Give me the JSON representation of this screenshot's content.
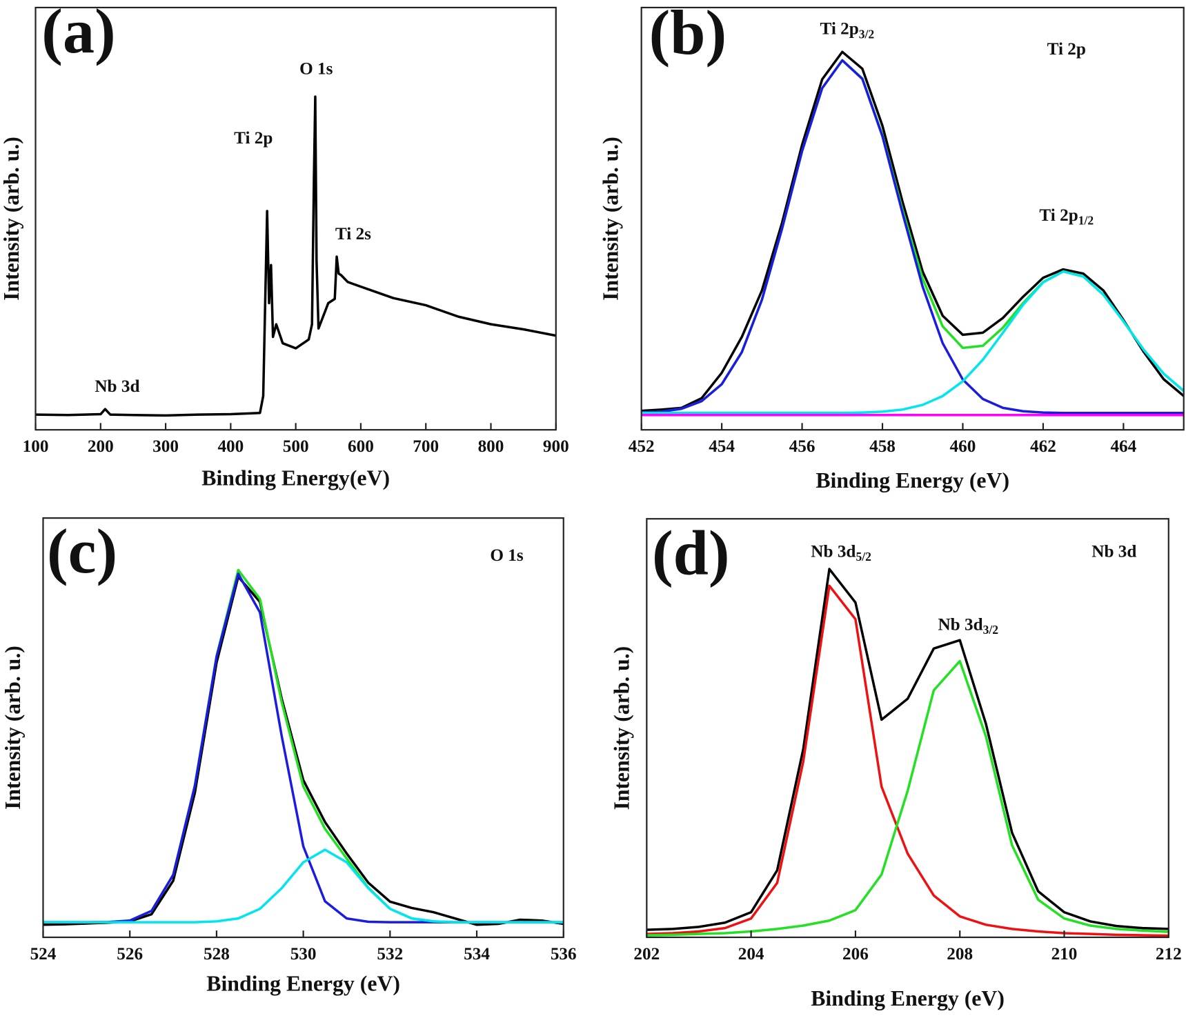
{
  "chart_data": [
    {
      "type": "line",
      "panel_label": "(a)",
      "xlabel": "Binding Energy(eV)",
      "ylabel": "Intensity (arb. u.)",
      "xlim": [
        100,
        900
      ],
      "xticks": [
        100,
        200,
        300,
        400,
        500,
        600,
        700,
        800,
        900
      ],
      "ylim": [
        0,
        100
      ],
      "x": [
        100,
        150,
        200,
        207,
        215,
        250,
        300,
        350,
        400,
        445,
        450,
        453,
        456,
        459,
        462,
        465,
        470,
        480,
        500,
        520,
        525,
        528,
        530,
        532,
        535,
        540,
        550,
        560,
        563,
        566,
        570,
        580,
        600,
        650,
        700,
        750,
        800,
        850,
        900
      ],
      "series": [
        {
          "color": "#000000",
          "values": [
            3.6,
            3.5,
            3.7,
            4.9,
            3.6,
            3.5,
            3.4,
            3.6,
            3.7,
            4.0,
            8,
            30,
            51.8,
            30,
            39,
            22,
            25,
            20.5,
            19.3,
            21.4,
            25,
            60,
            78.9,
            40,
            24,
            26,
            30,
            31,
            41,
            37,
            36.6,
            35,
            33.9,
            31.2,
            29.5,
            26.8,
            25,
            23.8,
            22.3
          ]
        }
      ],
      "annotations": [
        {
          "text": "Ti 2p"
        },
        {
          "text": "O 1s"
        },
        {
          "text": "Ti 2s"
        },
        {
          "text": "Nb 3d"
        }
      ]
    },
    {
      "type": "line",
      "panel_label": "(b)",
      "xlabel": "Binding Energy (eV)",
      "ylabel": "Intensity (arb. u.)",
      "xlim": [
        452,
        465.5
      ],
      "xticks": [
        452,
        454,
        456,
        458,
        460,
        462,
        464
      ],
      "ylim": [
        0,
        100
      ],
      "x": [
        452,
        452.5,
        453,
        453.5,
        454,
        454.5,
        455,
        455.5,
        456,
        456.5,
        457,
        457.5,
        458,
        458.5,
        459,
        459.5,
        460,
        460.5,
        461,
        461.5,
        462,
        462.5,
        463,
        463.5,
        464,
        464.5,
        465,
        465.5
      ],
      "series": [
        {
          "color": "#000000",
          "values": [
            4.5,
            4.8,
            5.2,
            7.5,
            13.5,
            22.0,
            33.0,
            49.0,
            67.5,
            83.0,
            89.5,
            85.5,
            72.0,
            54.0,
            37.5,
            27.0,
            22.5,
            23.0,
            26.5,
            31.5,
            36.0,
            38.0,
            37.0,
            33.0,
            26.0,
            18.5,
            12.0,
            8.0
          ]
        },
        {
          "color": "#22e022",
          "values": [
            4.1,
            4.3,
            5.0,
            6.8,
            10.8,
            18.4,
            30.8,
            47.6,
            66.0,
            80.9,
            87.5,
            83.2,
            69.8,
            52.1,
            35.8,
            24.5,
            19.4,
            19.9,
            24.2,
            30.0,
            35.0,
            37.5,
            36.3,
            32.0,
            25.7,
            19.0,
            13.3,
            9.2
          ]
        },
        {
          "color": "#1c1ce0",
          "values": [
            4.1,
            4.3,
            5.0,
            6.8,
            10.8,
            18.4,
            30.8,
            47.6,
            66.0,
            80.9,
            87.5,
            83.1,
            69.5,
            51.3,
            33.9,
            20.5,
            11.9,
            7.3,
            5.2,
            4.4,
            4.1,
            4.0,
            4.0,
            4.0,
            4.0,
            4.0,
            4.0,
            4.0
          ]
        },
        {
          "color": "#00e5f0",
          "values": [
            4.0,
            4.0,
            4.0,
            4.0,
            4.0,
            4.0,
            4.0,
            4.0,
            4.0,
            4.0,
            4.0,
            4.1,
            4.3,
            4.8,
            5.9,
            8.0,
            11.5,
            16.6,
            23.0,
            29.6,
            34.9,
            37.5,
            36.3,
            32.0,
            25.7,
            19.0,
            13.3,
            9.2
          ]
        },
        {
          "color": "#ff00ff",
          "values": [
            3.5,
            3.5,
            3.5,
            3.5,
            3.5,
            3.5,
            3.5,
            3.5,
            3.5,
            3.5,
            3.5,
            3.5,
            3.5,
            3.5,
            3.5,
            3.5,
            3.5,
            3.5,
            3.5,
            3.5,
            3.5,
            3.5,
            3.5,
            3.5,
            3.5,
            3.5,
            3.5,
            3.5
          ]
        }
      ],
      "annotations": [
        {
          "text": "Ti 2p",
          "sub": "3/2"
        },
        {
          "text": "Ti 2p"
        },
        {
          "text": "Ti 2p",
          "sub": "1/2"
        }
      ]
    },
    {
      "type": "line",
      "panel_label": "(c)",
      "xlabel": "Binding Energy (eV)",
      "ylabel": "Intensity (arb. u.)",
      "xlim": [
        524,
        536
      ],
      "xticks": [
        524,
        526,
        528,
        530,
        532,
        534,
        536
      ],
      "ylim": [
        0,
        100
      ],
      "x": [
        524,
        524.5,
        525,
        525.5,
        526,
        526.5,
        527,
        527.5,
        528,
        528.5,
        529,
        529.5,
        530,
        530.5,
        531,
        531.5,
        532,
        532.5,
        533,
        533.5,
        534,
        534.5,
        535,
        535.5,
        536
      ],
      "series": [
        {
          "color": "#000000",
          "values": [
            3.0,
            3.1,
            3.3,
            3.5,
            3.8,
            5.5,
            13.5,
            34.5,
            65.5,
            86.0,
            80.0,
            57.0,
            37.5,
            27.5,
            20.0,
            13.0,
            8.5,
            7.0,
            6.0,
            4.5,
            3.0,
            3.2,
            4.2,
            4.0,
            3.2
          ]
        },
        {
          "color": "#22e022",
          "values": [
            3.6,
            3.6,
            3.6,
            3.65,
            4.0,
            6.3,
            14.9,
            36.2,
            67.1,
            87.6,
            80.7,
            56.2,
            36.0,
            25.9,
            18.8,
            11.8,
            6.8,
            4.5,
            3.8,
            3.6,
            3.6,
            3.6,
            3.6,
            3.6,
            3.6
          ]
        },
        {
          "color": "#1c1ce0",
          "values": [
            3.6,
            3.6,
            3.6,
            3.65,
            4.0,
            6.3,
            14.9,
            36.2,
            66.9,
            86.7,
            77.5,
            48.1,
            21.7,
            8.6,
            4.5,
            3.7,
            3.6,
            3.6,
            3.6,
            3.6,
            3.6,
            3.6,
            3.6,
            3.6,
            3.6
          ]
        },
        {
          "color": "#00e5f0",
          "values": [
            3.6,
            3.6,
            3.6,
            3.6,
            3.6,
            3.6,
            3.6,
            3.6,
            3.8,
            4.5,
            6.8,
            11.7,
            17.9,
            20.9,
            17.9,
            11.7,
            6.8,
            4.5,
            3.8,
            3.6,
            3.6,
            3.6,
            3.6,
            3.6,
            3.6
          ]
        }
      ],
      "annotations": [
        {
          "text": "O 1s"
        }
      ]
    },
    {
      "type": "line",
      "panel_label": "(d)",
      "xlabel": "Binding Energy (eV)",
      "ylabel": "Intensity (arb. u.)",
      "xlim": [
        202,
        212
      ],
      "xticks": [
        202,
        204,
        206,
        208,
        210,
        212
      ],
      "ylim": [
        0,
        100
      ],
      "x": [
        202,
        202.5,
        203,
        203.5,
        204,
        204.5,
        205,
        205.5,
        206,
        206.5,
        207,
        207.5,
        208,
        208.5,
        209,
        209.5,
        210,
        210.5,
        211,
        211.5,
        212
      ],
      "series": [
        {
          "color": "#000000",
          "values": [
            1.8,
            2.0,
            2.5,
            3.5,
            6.0,
            16,
            45,
            88,
            80,
            52,
            57,
            69,
            71,
            51,
            25,
            11,
            6,
            3.8,
            2.7,
            2.2,
            2.0
          ]
        },
        {
          "color": "#ee1111",
          "values": [
            0.8,
            1.0,
            1.4,
            2.2,
            4.5,
            13,
            42,
            84,
            76,
            36,
            20,
            10,
            5,
            3,
            2,
            1.4,
            1.0,
            0.8,
            0.6,
            0.5,
            0.4
          ]
        },
        {
          "color": "#22e022",
          "values": [
            0.5,
            0.6,
            0.8,
            1.0,
            1.4,
            2.0,
            2.8,
            4.0,
            6.5,
            15,
            35,
            59,
            66,
            48,
            22,
            9,
            4.5,
            2.8,
            2.0,
            1.6,
            1.3
          ]
        }
      ],
      "annotations": [
        {
          "text": "Nb 3d",
          "sub": "5/2"
        },
        {
          "text": "Nb 3d"
        },
        {
          "text": "Nb 3d",
          "sub": "3/2"
        }
      ]
    }
  ]
}
